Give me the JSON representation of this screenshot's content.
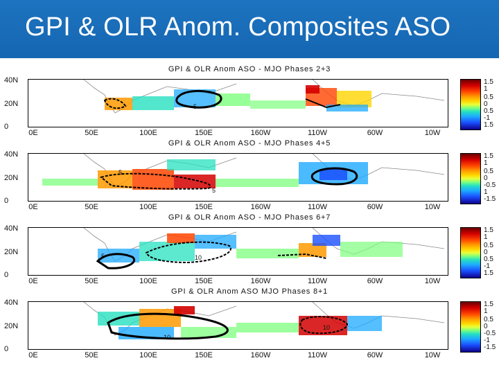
{
  "header": {
    "title": "GPI & OLR Anom. Composites ASO"
  },
  "colors": {
    "header_bg": "#1566b2",
    "title_text": "#ffffff",
    "warm": "#d40000",
    "cool": "#1a50ff",
    "neutral": "#7dff7d"
  },
  "panels": [
    {
      "title": "GPI & OLR Anom ASO - MJO Phases 2+3",
      "lat_labels": [
        "40N",
        "20N",
        "0"
      ],
      "lon_labels": [
        "0E",
        "50E",
        "100E",
        "150E",
        "160W",
        "110W",
        "60W",
        "10W"
      ],
      "colorbar": [
        "1.5",
        "1",
        "0.5",
        "0",
        "0.5",
        "-1",
        "1.5"
      ],
      "contour_labels": [
        "5"
      ]
    },
    {
      "title": "GPI & OLR Anom ASO - MJO Phases 4+5",
      "lat_labels": [
        "40N",
        "20N",
        "0"
      ],
      "lon_labels": [
        "0E",
        "50E",
        "100E",
        "150E",
        "160W",
        "110W",
        "60W",
        "10W"
      ],
      "colorbar": [
        "1.5",
        "1",
        "0.5",
        "0",
        "-0.5",
        "1",
        "-1.5"
      ],
      "contour_labels": [
        "5",
        "5"
      ]
    },
    {
      "title": "GPI & OLR Anom ASO - MJO Phases 6+7",
      "lat_labels": [
        "40N",
        "20N",
        "0"
      ],
      "lon_labels": [
        "0E",
        "50E",
        "100E",
        "150E",
        "160W",
        "110W",
        "60W",
        "10W"
      ],
      "colorbar": [
        "1.5",
        "1",
        "0.5",
        "0",
        "0.5",
        "-1",
        "1.5"
      ],
      "contour_labels": [
        "5",
        "10"
      ]
    },
    {
      "title": "GPI & OLR Anom ASO  MJO Phases 8+1",
      "lat_labels": [
        "40N",
        "20N",
        "0"
      ],
      "lon_labels": [
        "0E",
        "50E",
        "100E",
        "150E",
        "160W",
        "110W",
        "60W",
        "10W"
      ],
      "colorbar": [
        "1.5",
        "1",
        "0.5",
        "0",
        "-0.5",
        "-1",
        "-1.5"
      ],
      "contour_labels": [
        "10",
        "10"
      ]
    }
  ]
}
